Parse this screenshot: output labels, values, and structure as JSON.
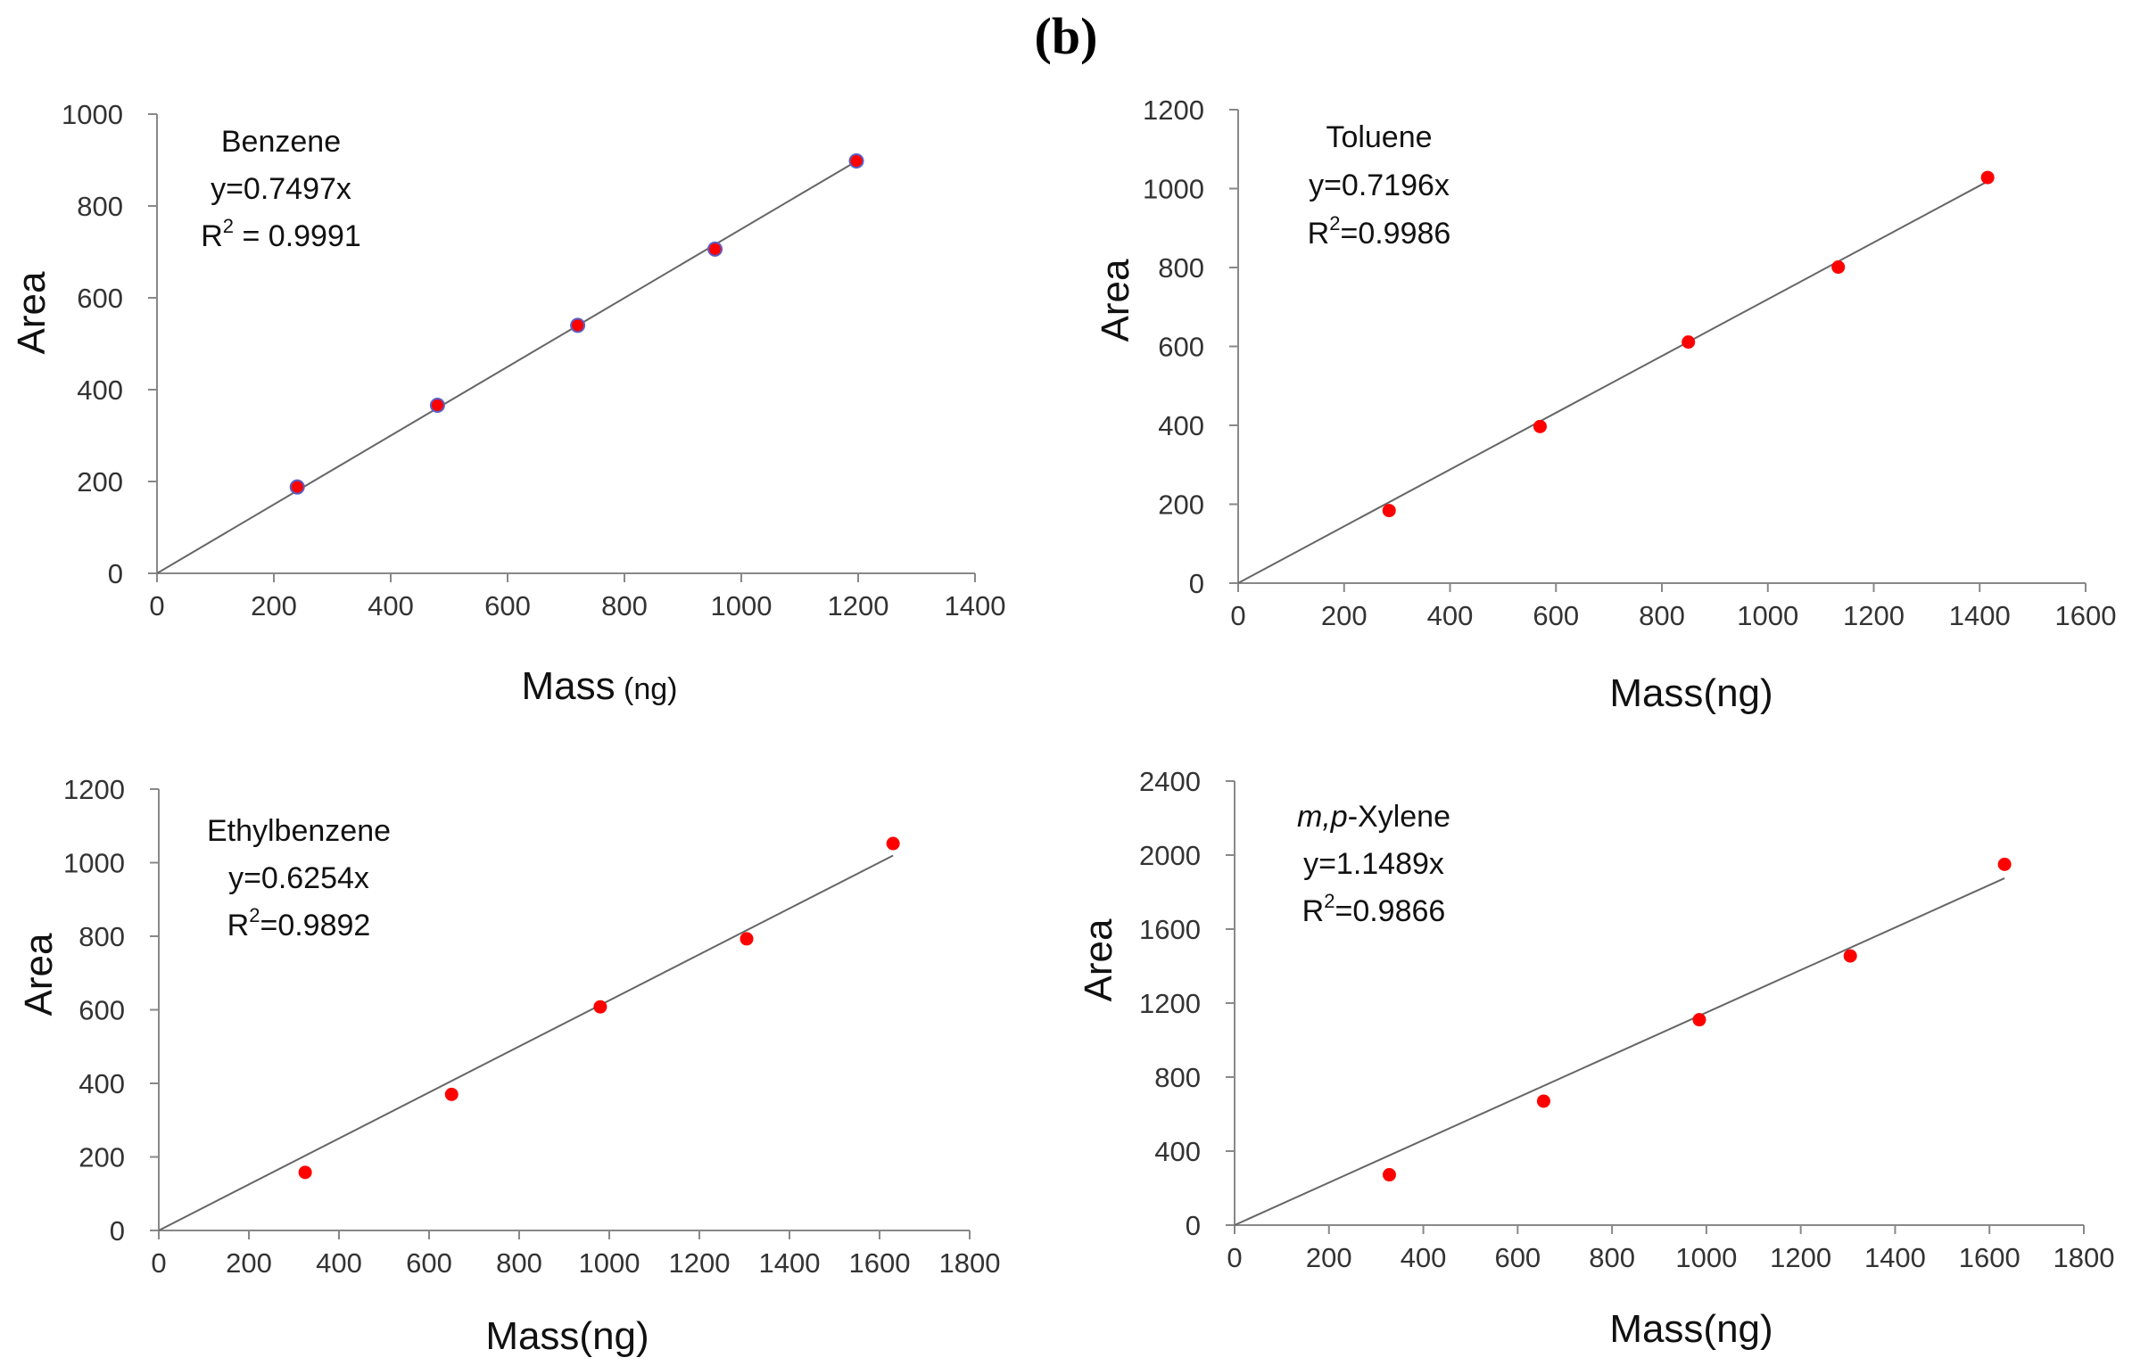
{
  "figure": {
    "label_open": "(",
    "label_letter": "b",
    "label_close": ")"
  },
  "colors": {
    "marker": "#ff0000",
    "marker_edge": "#5b5fc7",
    "line": "#666666",
    "axis": "#888888"
  },
  "chart_data": [
    {
      "type": "scatter",
      "title": "Benzene",
      "equation": "y=0.7497x",
      "r2_prefix": "R",
      "r2_value": " = 0.9991",
      "xlabel": "Mass",
      "xlabel_unit": " (ng)",
      "ylabel": "Area",
      "xlim": [
        0,
        1400
      ],
      "ylim": [
        0,
        1000
      ],
      "xticks": [
        0,
        200,
        400,
        600,
        800,
        1000,
        1200,
        1400
      ],
      "yticks": [
        0,
        200,
        400,
        600,
        800,
        1000
      ],
      "points": [
        [
          240,
          188
        ],
        [
          480,
          366
        ],
        [
          720,
          540
        ],
        [
          955,
          706
        ],
        [
          1197,
          898
        ]
      ],
      "fit": {
        "slope": 0.7497,
        "x_end": 1197
      },
      "marker_edge": true,
      "legend": "none"
    },
    {
      "type": "scatter",
      "title": "Toluene",
      "equation": "y=0.7196x",
      "r2_prefix": "R",
      "r2_value": "=0.9986",
      "xlabel": "Mass(ng)",
      "xlabel_unit": "",
      "ylabel": "Area",
      "xlim": [
        0,
        1600
      ],
      "ylim": [
        0,
        1200
      ],
      "xticks": [
        0,
        200,
        400,
        600,
        800,
        1000,
        1200,
        1400,
        1600
      ],
      "yticks": [
        0,
        200,
        400,
        600,
        800,
        1000,
        1200
      ],
      "points": [
        [
          285,
          184
        ],
        [
          570,
          397
        ],
        [
          850,
          611
        ],
        [
          1133,
          801
        ],
        [
          1415,
          1028
        ]
      ],
      "fit": {
        "slope": 0.7196,
        "x_end": 1415
      },
      "marker_edge": false,
      "legend": "none"
    },
    {
      "type": "scatter",
      "title": "Ethylbenzene",
      "equation": "y=0.6254x",
      "r2_prefix": "R",
      "r2_value": "=0.9892",
      "xlabel": "Mass(ng)",
      "xlabel_unit": "",
      "ylabel": "Area",
      "xlim": [
        0,
        1800
      ],
      "ylim": [
        0,
        1200
      ],
      "xticks": [
        0,
        200,
        400,
        600,
        800,
        1000,
        1200,
        1400,
        1600,
        1800
      ],
      "yticks": [
        0,
        200,
        400,
        600,
        800,
        1000,
        1200
      ],
      "points": [
        [
          325,
          158
        ],
        [
          650,
          370
        ],
        [
          980,
          608
        ],
        [
          1305,
          793
        ],
        [
          1630,
          1052
        ]
      ],
      "fit": {
        "slope": 0.6254,
        "x_end": 1630
      },
      "marker_edge": false,
      "legend": "none"
    },
    {
      "type": "scatter",
      "title_italic": "m,p",
      "title": "-Xylene",
      "equation": "y=1.1489x",
      "r2_prefix": "R",
      "r2_value": "=0.9866",
      "xlabel": "Mass(ng)",
      "xlabel_unit": "",
      "ylabel": "Area",
      "xlim": [
        0,
        1800
      ],
      "ylim": [
        0,
        2400
      ],
      "xticks": [
        0,
        200,
        400,
        600,
        800,
        1000,
        1200,
        1400,
        1600,
        1800
      ],
      "yticks": [
        0,
        400,
        800,
        1200,
        1600,
        2000,
        2400
      ],
      "points": [
        [
          328,
          272
        ],
        [
          655,
          670
        ],
        [
          985,
          1110
        ],
        [
          1305,
          1455
        ],
        [
          1632,
          1950
        ]
      ],
      "fit": {
        "slope": 1.1489,
        "x_end": 1632
      },
      "marker_edge": false,
      "legend": "none"
    }
  ]
}
